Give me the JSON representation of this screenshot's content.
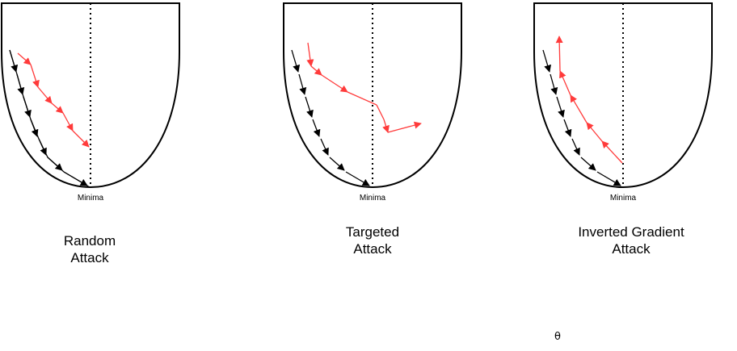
{
  "panels": [
    {
      "minima_label": "Minima",
      "caption_line1": "Random",
      "caption_line2": "Attack"
    },
    {
      "minima_label": "Minima",
      "caption_line1": "Targeted",
      "caption_line2": "Attack"
    },
    {
      "minima_label": "Minima",
      "caption_line1": "Inverted Gradient",
      "caption_line2": "Attack"
    }
  ],
  "axis_symbol": "θ",
  "colors": {
    "outline": "#000000",
    "descent_path": "#000000",
    "attack_path": "#ff3b3b"
  }
}
